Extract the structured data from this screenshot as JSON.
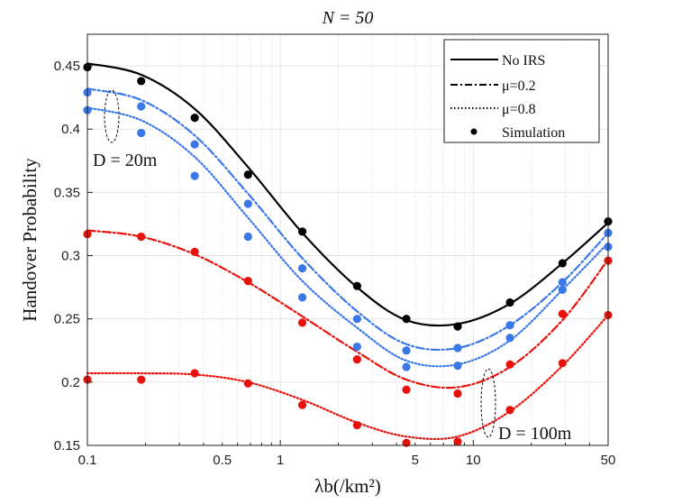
{
  "chart_data": {
    "type": "line",
    "title": "N = 50",
    "xlabel": "λb(/km²)",
    "ylabel": "Handover Probability",
    "xscale": "log",
    "xlim": [
      0.1,
      50
    ],
    "ylim": [
      0.15,
      0.475
    ],
    "xticks": [
      0.1,
      0.5,
      1,
      5,
      10,
      50
    ],
    "xtick_labels": [
      "0.1",
      "0.5",
      "1",
      "5",
      "10",
      "50"
    ],
    "yticks": [
      0.15,
      0.2,
      0.25,
      0.3,
      0.35,
      0.4,
      0.45
    ],
    "ytick_labels": [
      "0.15",
      "0.2",
      "0.25",
      "0.3",
      "0.35",
      "0.4",
      "0.45"
    ],
    "grid": true,
    "legend_position": "top-right",
    "legend": [
      "No IRS",
      "μ=0.2",
      "μ=0.8",
      "Simulation"
    ],
    "colors": {
      "no_irs": "#000000",
      "d20": "#3b78e7",
      "d100": "#e8120c"
    },
    "annotations": [
      "D = 20m",
      "D = 100m"
    ],
    "x": [
      0.1,
      0.19,
      0.36,
      0.68,
      1.3,
      2.5,
      4.5,
      8.3,
      15.5,
      29,
      50
    ],
    "series": [
      {
        "name": "No IRS",
        "group": "no_irs",
        "style": "solid",
        "curve": [
          0.452,
          0.443,
          0.416,
          0.37,
          0.318,
          0.275,
          0.249,
          0.246,
          0.262,
          0.294,
          0.326
        ],
        "sim": [
          0.449,
          0.438,
          0.409,
          0.364,
          0.319,
          0.276,
          0.25,
          0.244,
          0.263,
          0.294,
          0.327
        ]
      },
      {
        "name": "D=20m, μ=0.2",
        "group": "d20",
        "style": "dashdot",
        "curve": [
          0.432,
          0.423,
          0.395,
          0.349,
          0.298,
          0.256,
          0.23,
          0.227,
          0.245,
          0.279,
          0.318
        ],
        "sim": [
          0.429,
          0.418,
          0.388,
          0.341,
          0.29,
          0.25,
          0.225,
          0.227,
          0.245,
          0.279,
          0.318
        ]
      },
      {
        "name": "D=20m, μ=0.8",
        "group": "d20",
        "style": "dotted",
        "curve": [
          0.417,
          0.407,
          0.378,
          0.33,
          0.28,
          0.243,
          0.217,
          0.214,
          0.233,
          0.273,
          0.31
        ],
        "sim": [
          0.415,
          0.397,
          0.363,
          0.315,
          0.267,
          0.228,
          0.212,
          0.213,
          0.235,
          0.273,
          0.307
        ]
      },
      {
        "name": "D=100m, μ=0.2",
        "group": "d100",
        "style": "dashdot",
        "curve": [
          0.32,
          0.315,
          0.301,
          0.279,
          0.252,
          0.224,
          0.202,
          0.196,
          0.212,
          0.249,
          0.297
        ],
        "sim": [
          0.317,
          0.315,
          0.303,
          0.28,
          0.247,
          0.218,
          0.194,
          0.191,
          0.214,
          0.254,
          0.296
        ]
      },
      {
        "name": "D=100m, μ=0.8",
        "group": "d100",
        "style": "dotted",
        "curve": [
          0.207,
          0.207,
          0.206,
          0.2,
          0.186,
          0.168,
          0.157,
          0.157,
          0.177,
          0.213,
          0.253
        ],
        "sim": [
          0.202,
          0.202,
          0.207,
          0.199,
          0.182,
          0.166,
          0.152,
          0.153,
          0.178,
          0.215,
          0.253
        ]
      }
    ]
  }
}
